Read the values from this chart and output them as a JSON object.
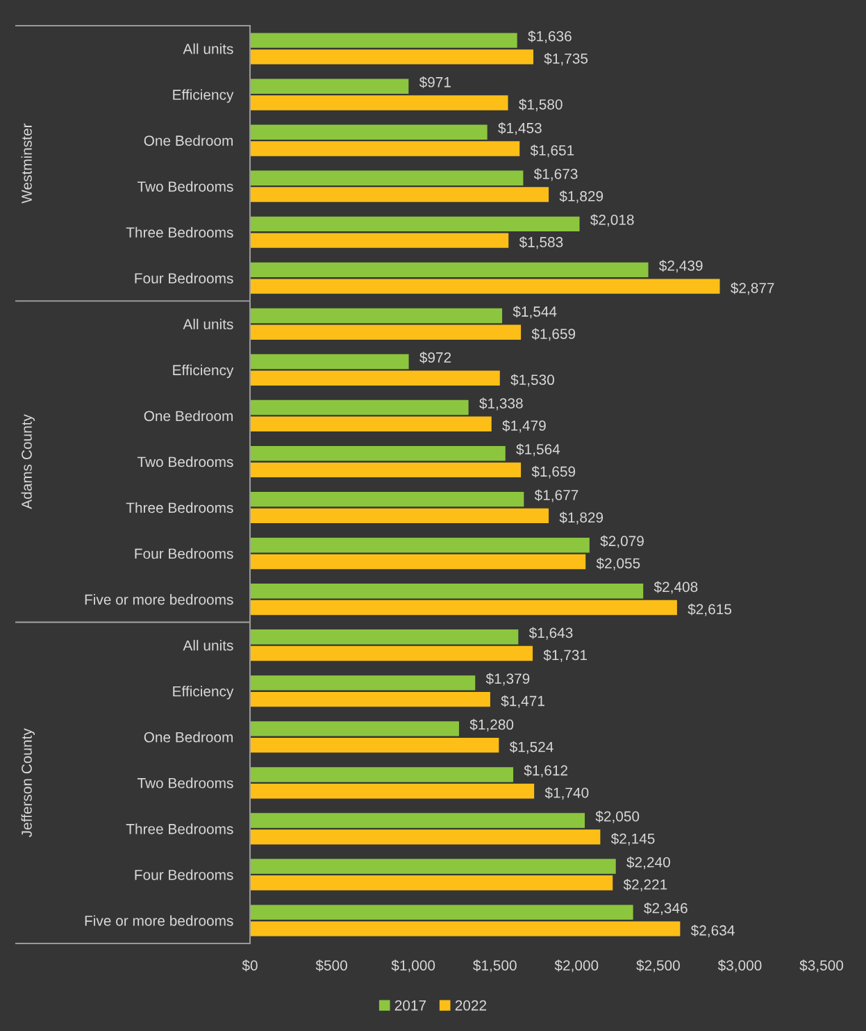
{
  "chart_data": [
    {
      "type": "bar",
      "orientation": "horizontal",
      "ylabel": "Westminster",
      "categories": [
        "All units",
        "Efficiency",
        "One Bedroom",
        "Two Bedrooms",
        "Three Bedrooms",
        "Four Bedrooms"
      ],
      "series": [
        {
          "color": "#8cc63f",
          "values": [
            1636,
            971,
            1453,
            1673,
            2018,
            2439
          ],
          "value_labels": [
            "$1,636",
            "$971",
            "$1,453",
            "$1,673",
            "$2,018",
            "$2,439"
          ]
        },
        {
          "color": "#fdbf17",
          "values": [
            1735,
            1580,
            1651,
            1829,
            1583,
            2877
          ],
          "value_labels": [
            "$1,735",
            "$1,580",
            "$1,651",
            "$1,829",
            "$1,583",
            "$2,877"
          ]
        }
      ],
      "xlim": [
        0,
        3500
      ],
      "tick_labels": "y"
    },
    {
      "type": "bar",
      "orientation": "horizontal",
      "ylabel": "Adams County",
      "categories": [
        "All units",
        "Efficiency",
        "One Bedroom",
        "Two Bedrooms",
        "Three Bedrooms",
        "Four Bedrooms",
        "Five or more bedrooms"
      ],
      "series": [
        {
          "color": "#8cc63f",
          "values": [
            1544,
            972,
            1338,
            1564,
            1677,
            2079,
            2408
          ],
          "value_labels": [
            "$1,544",
            "$972",
            "$1,338",
            "$1,564",
            "$1,677",
            "$2,079",
            "$2,408"
          ]
        },
        {
          "color": "#fdbf17",
          "values": [
            1659,
            1530,
            1479,
            1659,
            1829,
            2055,
            2615
          ],
          "value_labels": [
            "$1,659",
            "$1,530",
            "$1,479",
            "$1,659",
            "$1,829",
            "$2,055",
            "$2,615"
          ]
        }
      ],
      "xlim": [
        0,
        3500
      ],
      "tick_labels": "y"
    },
    {
      "type": "bar",
      "orientation": "horizontal",
      "ylabel": "Jefferson County",
      "categories": [
        "All units",
        "Efficiency",
        "One Bedroom",
        "Two Bedrooms",
        "Three Bedrooms",
        "Four Bedrooms",
        "Five or more bedrooms"
      ],
      "series": [
        {
          "name": "2017",
          "color": "#8cc63f",
          "values": [
            1643,
            1379,
            1280,
            1612,
            2050,
            2240,
            2346
          ],
          "value_labels": [
            "$1,643",
            "$1,379",
            "$1,280",
            "$1,612",
            "$2,050",
            "$2,240",
            "$2,346"
          ]
        },
        {
          "name": "2022",
          "color": "#fdbf17",
          "values": [
            1731,
            1471,
            1524,
            1740,
            2145,
            2221,
            2634
          ],
          "value_labels": [
            "$1,731",
            "$1,471",
            "$1,524",
            "$1,740",
            "$2,145",
            "$2,221",
            "$2,634"
          ]
        }
      ],
      "xlim": [
        0,
        3500
      ],
      "xticks": [
        {
          "value": 0,
          "label": "$0"
        },
        {
          "value": 500,
          "label": "$500"
        },
        {
          "value": 1000,
          "label": "$1,000"
        },
        {
          "value": 1500,
          "label": "$1,500"
        },
        {
          "value": 2000,
          "label": "$2,000"
        },
        {
          "value": 2500,
          "label": "$2,500"
        },
        {
          "value": 3000,
          "label": "$3,000"
        },
        {
          "value": 3500,
          "label": "$3,500"
        }
      ],
      "legend": "bottom"
    }
  ]
}
